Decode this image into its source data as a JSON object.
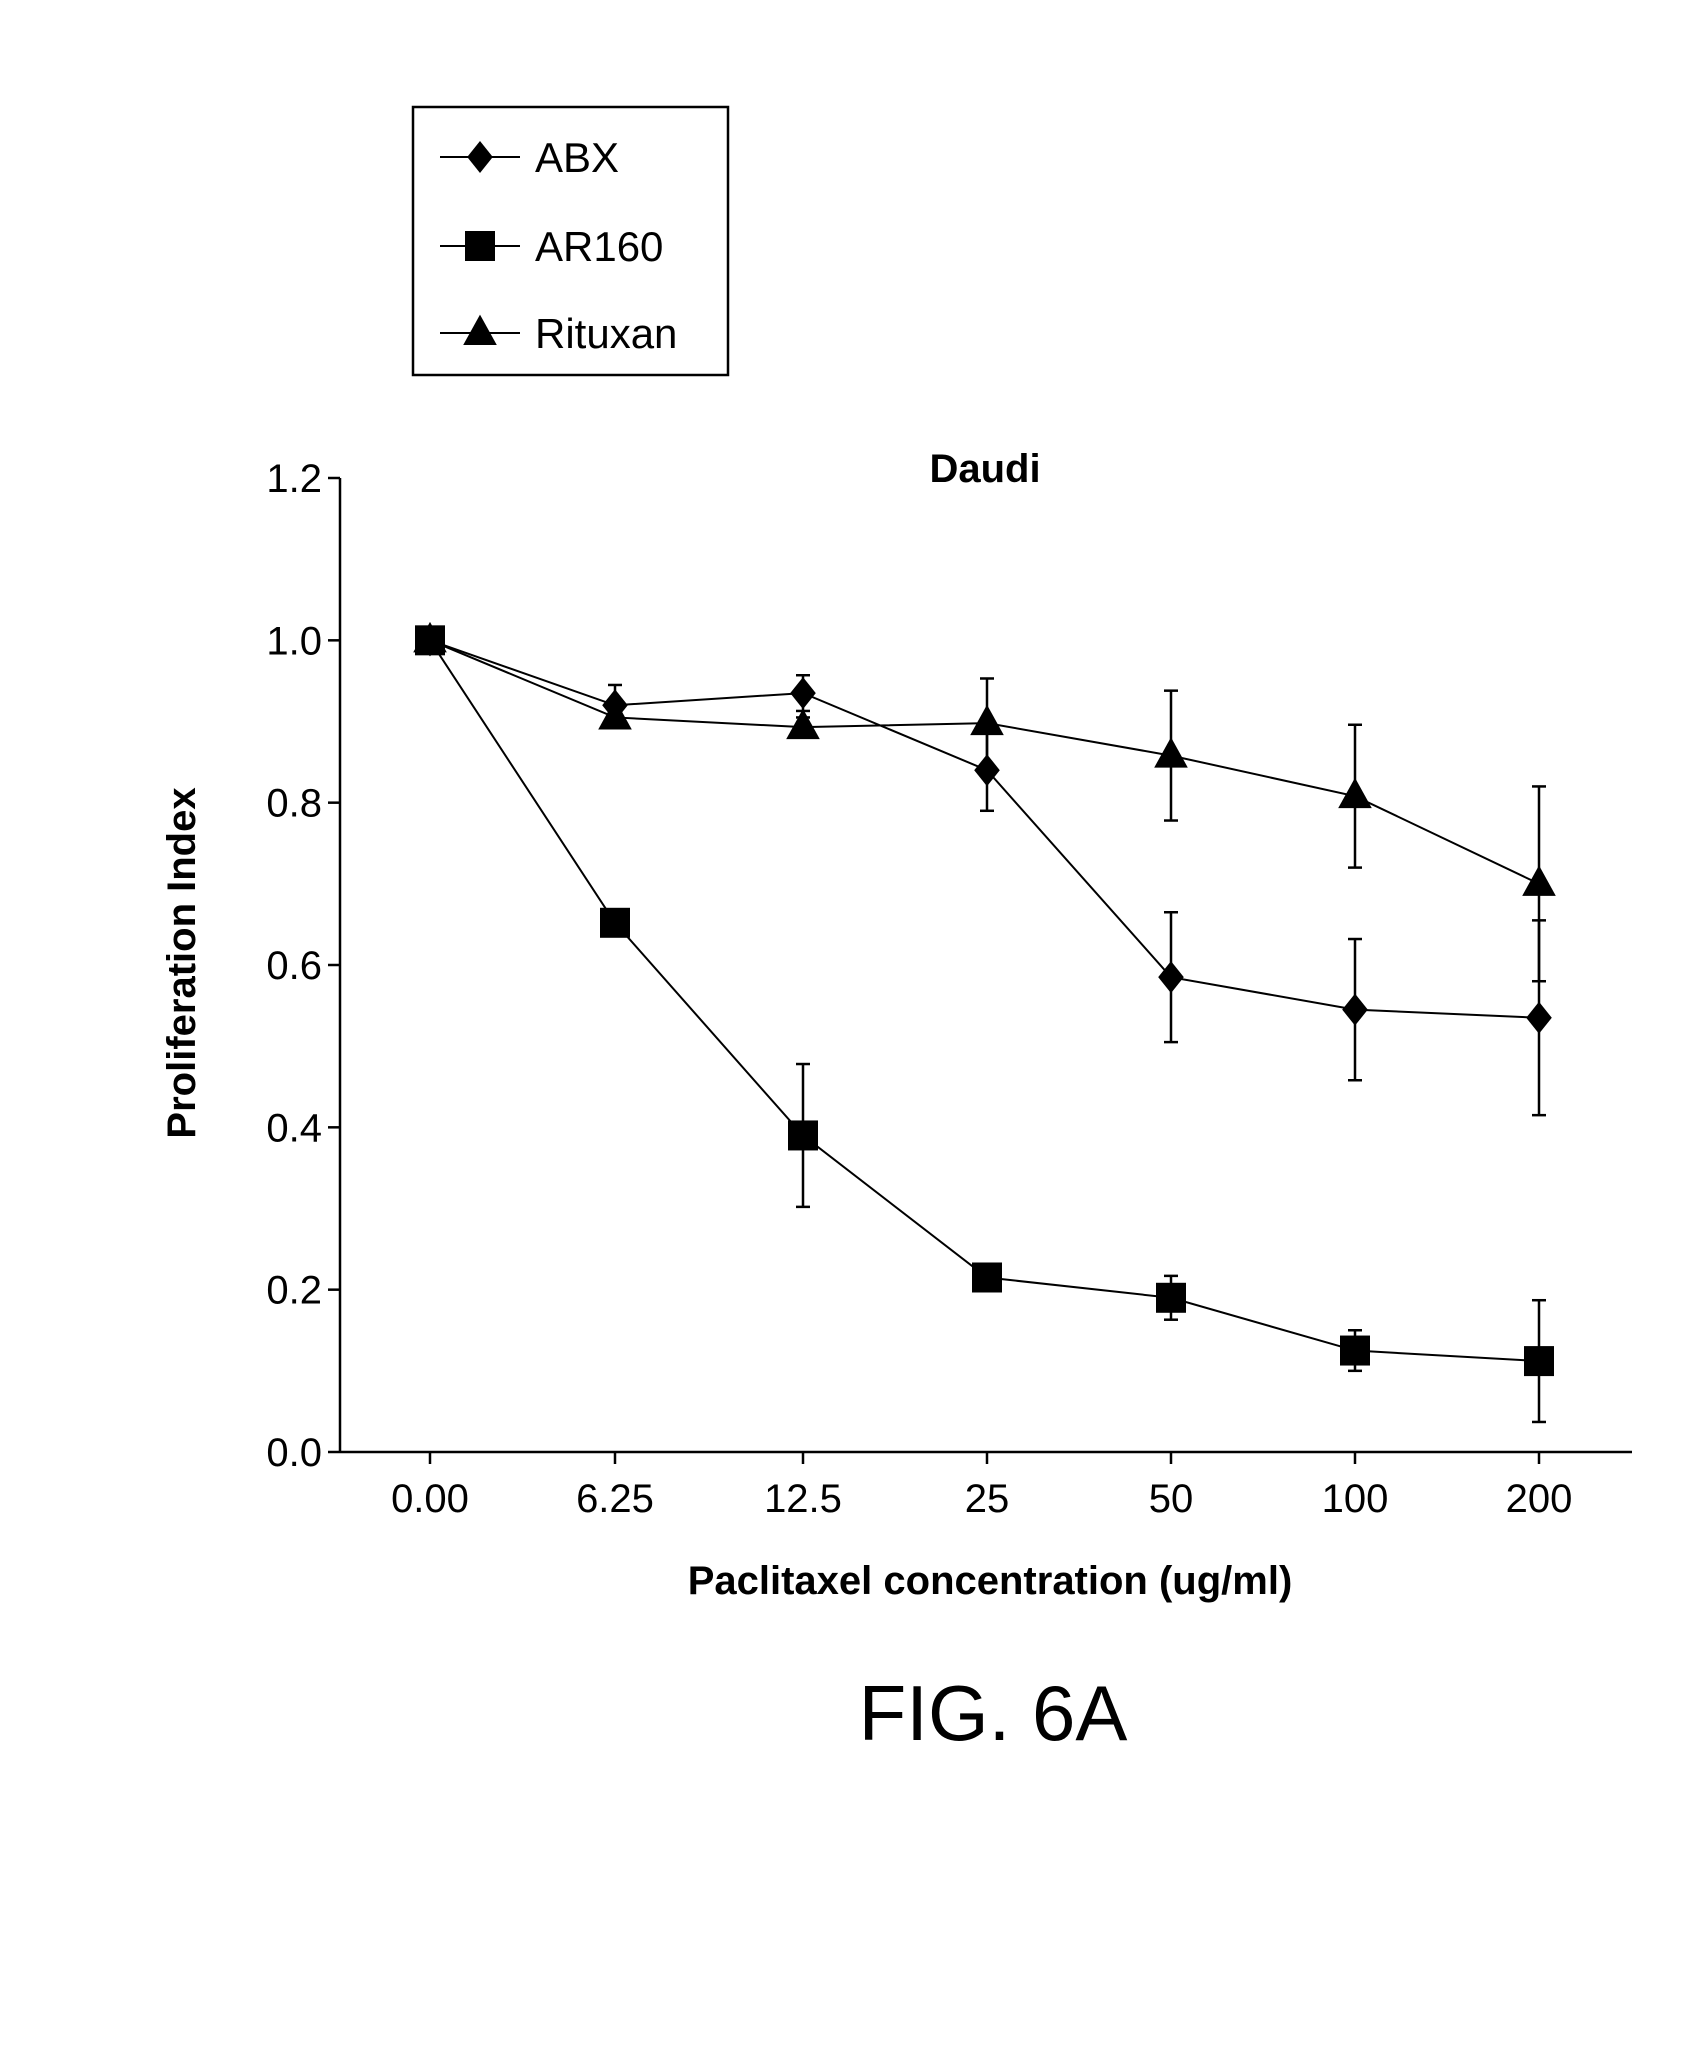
{
  "chart_data": {
    "type": "line",
    "title": "Daudi",
    "xlabel": "Paclitaxel concentration (ug/ml)",
    "ylabel": "Proliferation Index",
    "categories": [
      "0.00",
      "6.25",
      "12.5",
      "25",
      "50",
      "100",
      "200"
    ],
    "ylim": [
      0,
      1.2
    ],
    "yticks": [
      "0.0",
      "0.2",
      "0.4",
      "0.6",
      "0.8",
      "1.0",
      "1.2"
    ],
    "grid": false,
    "legend_position": "top-left",
    "series": [
      {
        "name": "ABX",
        "marker": "diamond",
        "values": [
          1.0,
          0.92,
          0.935,
          0.84,
          0.585,
          0.545,
          0.535
        ],
        "errors": [
          0,
          0.025,
          0.022,
          0.05,
          0.08,
          0.087,
          0.12
        ]
      },
      {
        "name": "AR160",
        "marker": "square",
        "values": [
          1.0,
          0.652,
          0.39,
          0.215,
          0.19,
          0.125,
          0.112
        ],
        "errors": [
          0,
          0,
          0.088,
          0.005,
          0.027,
          0.025,
          0.075
        ]
      },
      {
        "name": "Rituxan",
        "marker": "triangle",
        "values": [
          1.0,
          0.905,
          0.893,
          0.898,
          0.858,
          0.808,
          0.7
        ],
        "errors": [
          0,
          0.01,
          0.012,
          0.055,
          0.08,
          0.088,
          0.12
        ]
      }
    ]
  },
  "figure_label": "FIG. 6A"
}
